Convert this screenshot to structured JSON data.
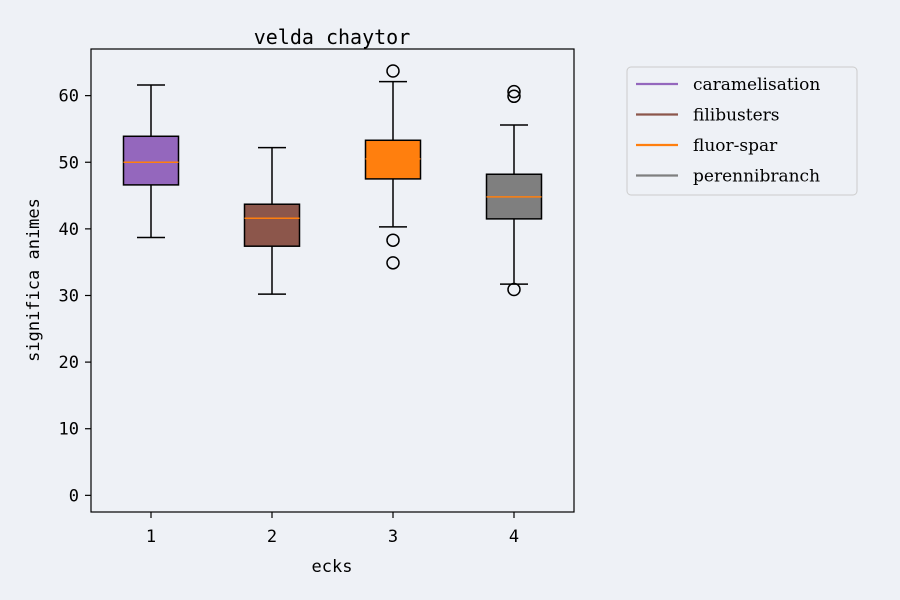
{
  "chart_data": {
    "type": "box",
    "title": "velda chaytor",
    "xlabel": "ecks",
    "ylabel": "significa animes",
    "categories": [
      "1",
      "2",
      "3",
      "4"
    ],
    "yticks": [
      0,
      10,
      20,
      30,
      40,
      50,
      60
    ],
    "ylim": [
      -2.5,
      67
    ],
    "grid": false,
    "legend_position": "upper-right-outside",
    "series": [
      {
        "name": "caramelisation",
        "color": "#9467bd",
        "whisker_low": 38.7,
        "q1": 46.6,
        "median": 50.0,
        "q3": 53.9,
        "whisker_high": 61.6,
        "outliers": []
      },
      {
        "name": "filibusters",
        "color": "#8c564b",
        "whisker_low": 30.2,
        "q1": 37.4,
        "median": 41.6,
        "q3": 43.7,
        "whisker_high": 52.2,
        "outliers": []
      },
      {
        "name": "fluor-spar",
        "color": "#ff7f0e",
        "whisker_low": 40.3,
        "q1": 47.5,
        "median": 50.5,
        "q3": 53.3,
        "whisker_high": 62.1,
        "outliers": [
          63.7,
          38.3,
          34.9
        ]
      },
      {
        "name": "perennibranch",
        "color": "#7f7f7f",
        "whisker_low": 31.7,
        "q1": 41.5,
        "median": 44.8,
        "q3": 48.2,
        "whisker_high": 55.6,
        "outliers": [
          60.6,
          59.9,
          30.9
        ]
      }
    ],
    "median_color": "#ff7f0e"
  }
}
